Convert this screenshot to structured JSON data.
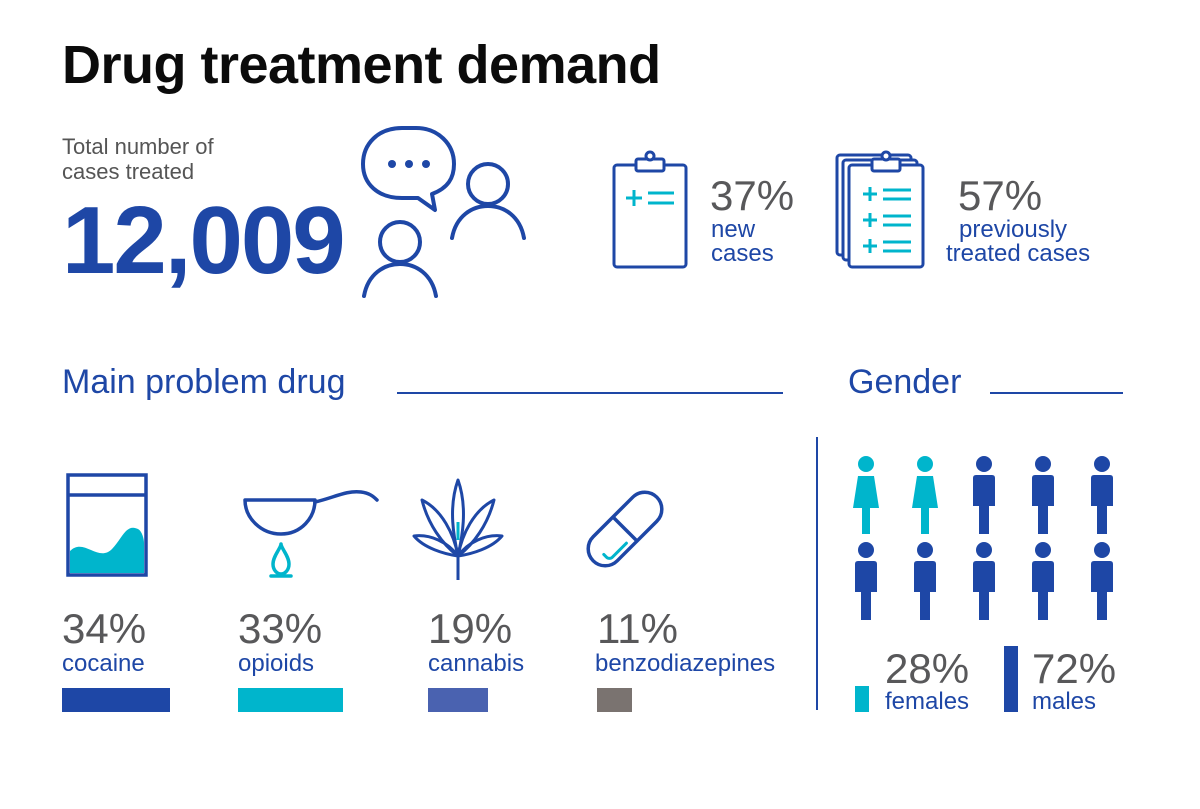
{
  "title": "Drug treatment demand",
  "total": {
    "label_line1": "Total number of",
    "label_line2": "cases treated",
    "value": "12,009"
  },
  "case_types": [
    {
      "percent": "37%",
      "label_line1": "new",
      "label_line2": "cases",
      "icon": "clipboard-icon"
    },
    {
      "percent": "57%",
      "label_line1": "previously",
      "label_line2": "treated cases",
      "icon": "clipboard-stack-icon"
    }
  ],
  "main_drug": {
    "heading": "Main problem drug",
    "items": [
      {
        "percent": "34%",
        "label": "cocaine",
        "value": 34,
        "color": "#1e47a6",
        "icon": "cocaine-bag-icon"
      },
      {
        "percent": "33%",
        "label": "opioids",
        "value": 33,
        "color": "#00b5cc",
        "icon": "spoon-dropper-icon"
      },
      {
        "percent": "19%",
        "label": "cannabis",
        "value": 19,
        "color": "#4a62b0",
        "icon": "cannabis-leaf-icon"
      },
      {
        "percent": "11%",
        "label": "benzodiazepines",
        "value": 11,
        "color": "#7a7370",
        "icon": "pill-capsule-icon"
      }
    ]
  },
  "gender": {
    "heading": "Gender",
    "female": {
      "percent": "28%",
      "label": "females",
      "value": 28,
      "color": "#00b5cc"
    },
    "male": {
      "percent": "72%",
      "label": "males",
      "value": 72,
      "color": "#1e47a6"
    }
  }
}
